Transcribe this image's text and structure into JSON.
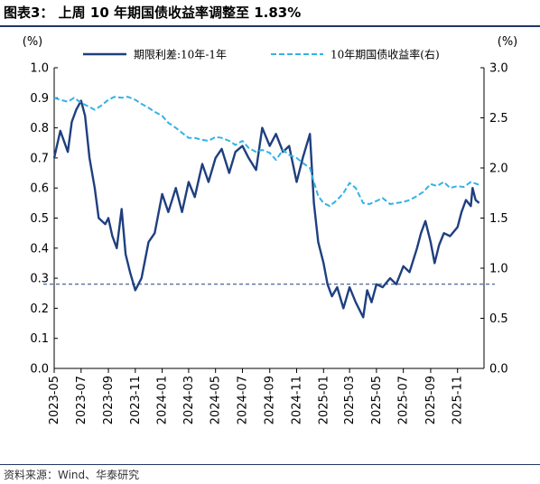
{
  "title": "图表3： 上周 10 年期国债收益率调整至 1.83%",
  "source": "资料来源：Wind、华泰研究",
  "chart_data": {
    "type": "line",
    "title": "",
    "left_axis_unit": "(%)",
    "right_axis_unit": "(%)",
    "left_ylim": [
      0.0,
      1.0
    ],
    "left_yticks": [
      "0.0",
      "0.1",
      "0.2",
      "0.3",
      "0.4",
      "0.5",
      "0.6",
      "0.7",
      "0.8",
      "0.9",
      "1.0"
    ],
    "right_ylim": [
      0.0,
      3.0
    ],
    "right_yticks": [
      "0.0",
      "0.5",
      "1.0",
      "1.5",
      "2.0",
      "2.5",
      "3.0"
    ],
    "xticks": [
      "2023-05",
      "2023-07",
      "2023-09",
      "2023-11",
      "2024-01",
      "2024-03",
      "2024-05",
      "2024-07",
      "2024-09",
      "2024-11",
      "2025-01",
      "2025-03",
      "2025-05",
      "2025-07",
      "2025-09",
      "2025-11"
    ],
    "reference_line": {
      "axis": "left",
      "value": 0.28,
      "style": "dashed"
    },
    "legend_position": "top",
    "series": [
      {
        "name": "期限利差:10年-1年",
        "axis": "left",
        "color": "#1f3f7f",
        "style": "solid",
        "points": [
          [
            "2023-05",
            0.7
          ],
          [
            "2023-05-15",
            0.79
          ],
          [
            "2023-06",
            0.72
          ],
          [
            "2023-06-10",
            0.82
          ],
          [
            "2023-06-20",
            0.86
          ],
          [
            "2023-07",
            0.89
          ],
          [
            "2023-07-10",
            0.84
          ],
          [
            "2023-07-20",
            0.7
          ],
          [
            "2023-08",
            0.6
          ],
          [
            "2023-08-10",
            0.5
          ],
          [
            "2023-08-25",
            0.48
          ],
          [
            "2023-09",
            0.5
          ],
          [
            "2023-09-10",
            0.44
          ],
          [
            "2023-09-20",
            0.4
          ],
          [
            "2023-10",
            0.53
          ],
          [
            "2023-10-10",
            0.38
          ],
          [
            "2023-10-20",
            0.32
          ],
          [
            "2023-11",
            0.26
          ],
          [
            "2023-11-15",
            0.3
          ],
          [
            "2023-12",
            0.42
          ],
          [
            "2023-12-15",
            0.45
          ],
          [
            "2024-01",
            0.58
          ],
          [
            "2024-01-15",
            0.52
          ],
          [
            "2024-02",
            0.6
          ],
          [
            "2024-02-15",
            0.52
          ],
          [
            "2024-03",
            0.62
          ],
          [
            "2024-03-15",
            0.57
          ],
          [
            "2024-04",
            0.68
          ],
          [
            "2024-04-15",
            0.62
          ],
          [
            "2024-05",
            0.7
          ],
          [
            "2024-05-15",
            0.73
          ],
          [
            "2024-06",
            0.65
          ],
          [
            "2024-06-15",
            0.72
          ],
          [
            "2024-07",
            0.74
          ],
          [
            "2024-07-15",
            0.7
          ],
          [
            "2024-08",
            0.66
          ],
          [
            "2024-08-15",
            0.8
          ],
          [
            "2024-09",
            0.74
          ],
          [
            "2024-09-15",
            0.78
          ],
          [
            "2024-10",
            0.72
          ],
          [
            "2024-10-15",
            0.74
          ],
          [
            "2024-11",
            0.62
          ],
          [
            "2024-11-15",
            0.7
          ],
          [
            "2024-12",
            0.78
          ],
          [
            "2024-12-10",
            0.55
          ],
          [
            "2024-12-20",
            0.42
          ],
          [
            "2025-01",
            0.35
          ],
          [
            "2025-01-10",
            0.28
          ],
          [
            "2025-01-20",
            0.24
          ],
          [
            "2025-02",
            0.27
          ],
          [
            "2025-02-15",
            0.2
          ],
          [
            "2025-03",
            0.27
          ],
          [
            "2025-03-15",
            0.22
          ],
          [
            "2025-04",
            0.17
          ],
          [
            "2025-04-10",
            0.26
          ],
          [
            "2025-04-20",
            0.22
          ],
          [
            "2025-05",
            0.28
          ],
          [
            "2025-05-15",
            0.27
          ],
          [
            "2025-06",
            0.3
          ],
          [
            "2025-06-15",
            0.28
          ],
          [
            "2025-07",
            0.34
          ],
          [
            "2025-07-15",
            0.32
          ],
          [
            "2025-08",
            0.4
          ],
          [
            "2025-08-10",
            0.45
          ],
          [
            "2025-08-20",
            0.49
          ],
          [
            "2025-09",
            0.42
          ],
          [
            "2025-09-10",
            0.35
          ],
          [
            "2025-09-20",
            0.41
          ],
          [
            "2025-10",
            0.45
          ],
          [
            "2025-10-15",
            0.44
          ],
          [
            "2025-11",
            0.47
          ],
          [
            "2025-11-10",
            0.52
          ],
          [
            "2025-11-20",
            0.56
          ],
          [
            "2025-12",
            0.54
          ],
          [
            "2025-12-05",
            0.6
          ],
          [
            "2025-12-12",
            0.56
          ],
          [
            "2025-12-20",
            0.55
          ]
        ]
      },
      {
        "name": "10年期国债收益率(右)",
        "axis": "right",
        "color": "#33b2e6",
        "style": "dashed",
        "points": [
          [
            "2023-05",
            2.7
          ],
          [
            "2023-05-15",
            2.68
          ],
          [
            "2023-06",
            2.66
          ],
          [
            "2023-06-15",
            2.7
          ],
          [
            "2023-07",
            2.65
          ],
          [
            "2023-07-15",
            2.62
          ],
          [
            "2023-08",
            2.58
          ],
          [
            "2023-08-15",
            2.62
          ],
          [
            "2023-09",
            2.68
          ],
          [
            "2023-09-15",
            2.71
          ],
          [
            "2023-10",
            2.7
          ],
          [
            "2023-10-15",
            2.71
          ],
          [
            "2023-11",
            2.68
          ],
          [
            "2023-11-15",
            2.64
          ],
          [
            "2023-12",
            2.6
          ],
          [
            "2023-12-15",
            2.56
          ],
          [
            "2024-01",
            2.52
          ],
          [
            "2024-01-15",
            2.45
          ],
          [
            "2024-02",
            2.4
          ],
          [
            "2024-02-15",
            2.35
          ],
          [
            "2024-03",
            2.3
          ],
          [
            "2024-03-15",
            2.3
          ],
          [
            "2024-04",
            2.28
          ],
          [
            "2024-04-15",
            2.27
          ],
          [
            "2024-05",
            2.31
          ],
          [
            "2024-05-15",
            2.3
          ],
          [
            "2024-06",
            2.27
          ],
          [
            "2024-06-15",
            2.23
          ],
          [
            "2024-07",
            2.27
          ],
          [
            "2024-07-15",
            2.2
          ],
          [
            "2024-08",
            2.16
          ],
          [
            "2024-08-15",
            2.18
          ],
          [
            "2024-09",
            2.15
          ],
          [
            "2024-09-15",
            2.08
          ],
          [
            "2024-10",
            2.18
          ],
          [
            "2024-10-15",
            2.13
          ],
          [
            "2024-11",
            2.1
          ],
          [
            "2024-11-15",
            2.05
          ],
          [
            "2024-12",
            2.0
          ],
          [
            "2024-12-10",
            1.86
          ],
          [
            "2024-12-20",
            1.72
          ],
          [
            "2025-01",
            1.65
          ],
          [
            "2025-01-15",
            1.62
          ],
          [
            "2025-02",
            1.68
          ],
          [
            "2025-02-15",
            1.75
          ],
          [
            "2025-03",
            1.85
          ],
          [
            "2025-03-15",
            1.8
          ],
          [
            "2025-04",
            1.65
          ],
          [
            "2025-04-15",
            1.64
          ],
          [
            "2025-05",
            1.67
          ],
          [
            "2025-05-15",
            1.7
          ],
          [
            "2025-06",
            1.64
          ],
          [
            "2025-06-15",
            1.65
          ],
          [
            "2025-07",
            1.66
          ],
          [
            "2025-07-15",
            1.68
          ],
          [
            "2025-08",
            1.72
          ],
          [
            "2025-08-15",
            1.76
          ],
          [
            "2025-09",
            1.84
          ],
          [
            "2025-09-15",
            1.82
          ],
          [
            "2025-10",
            1.86
          ],
          [
            "2025-10-15",
            1.8
          ],
          [
            "2025-11",
            1.82
          ],
          [
            "2025-11-15",
            1.81
          ],
          [
            "2025-12",
            1.86
          ],
          [
            "2025-12-15",
            1.84
          ],
          [
            "2025-12-20",
            1.83
          ]
        ]
      }
    ]
  }
}
